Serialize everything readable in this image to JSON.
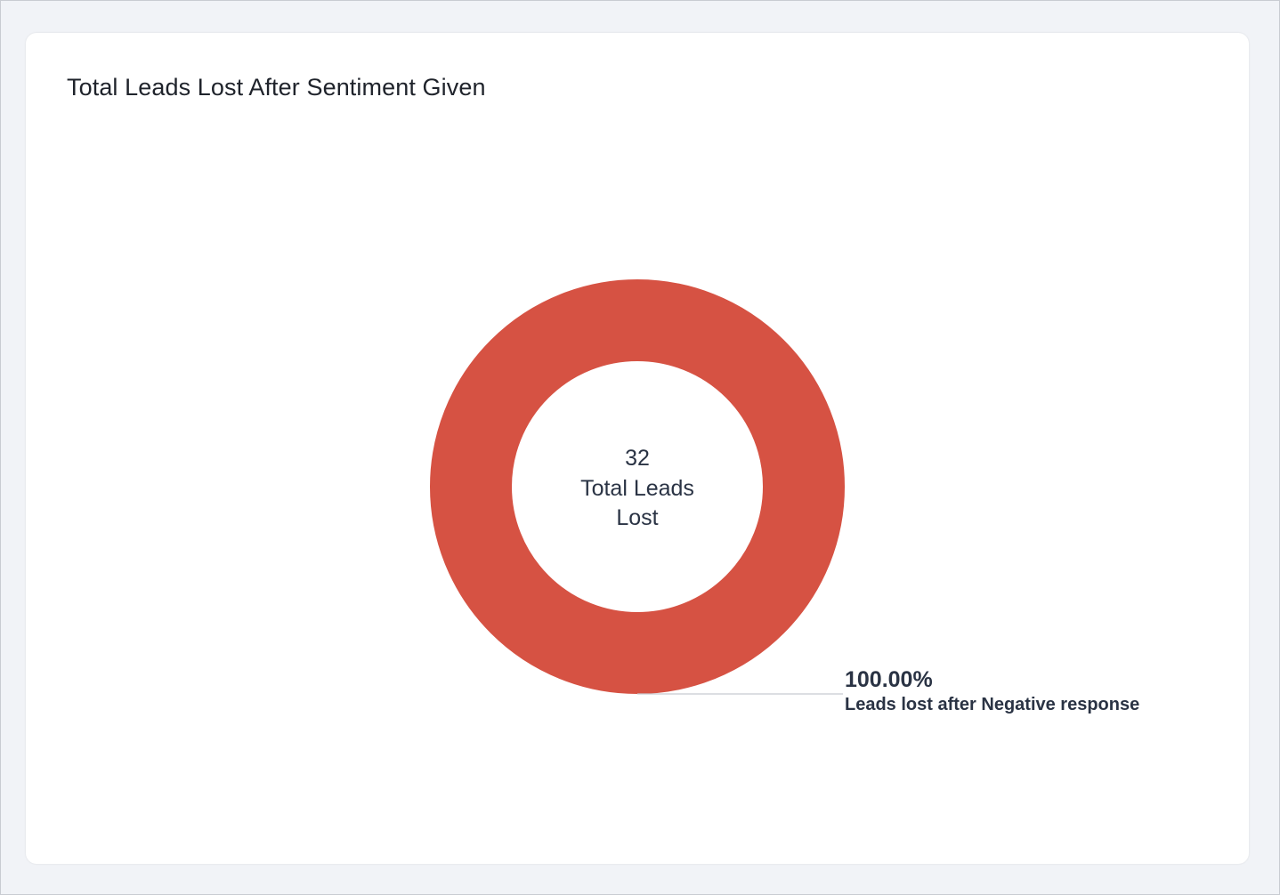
{
  "card": {
    "title": "Total Leads Lost After Sentiment Given"
  },
  "chart_data": {
    "type": "pie",
    "variant": "donut",
    "title": "Total Leads Lost After Sentiment Given",
    "center": {
      "value": "32",
      "label_line1": "Total Leads",
      "label_line2": "Lost"
    },
    "slices": [
      {
        "label": "Leads lost after Negative response",
        "percent": 100.0,
        "percent_label": "100.00%",
        "color": "#d65243"
      }
    ],
    "legend": "none"
  },
  "colors": {
    "background": "#f1f3f7",
    "card": "#ffffff",
    "text": "#2a3344",
    "leader_line": "#c8cbd1"
  }
}
